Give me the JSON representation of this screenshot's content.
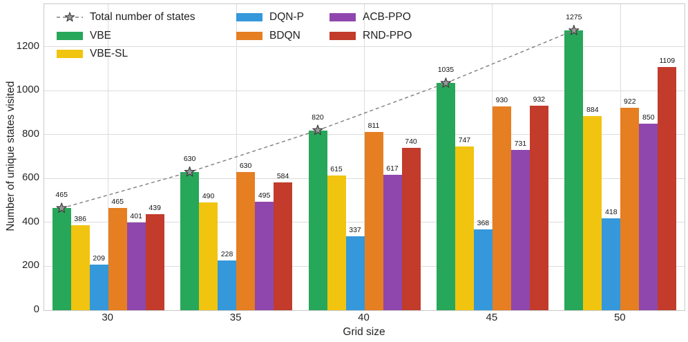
{
  "figure": {
    "xlabel": "Grid size",
    "ylabel": "Number of unique states visited"
  },
  "chart_data": {
    "type": "bar",
    "categories": [
      "30",
      "35",
      "40",
      "45",
      "50"
    ],
    "series": [
      {
        "name": "VBE",
        "color": "#27a75a",
        "values": [
          465,
          630,
          820,
          1035,
          1275
        ]
      },
      {
        "name": "VBE-SL",
        "color": "#f1c40f",
        "values": [
          386,
          490,
          615,
          747,
          884
        ]
      },
      {
        "name": "DQN-P",
        "color": "#3498db",
        "values": [
          209,
          228,
          337,
          368,
          418
        ]
      },
      {
        "name": "BDQN",
        "color": "#e67e22",
        "values": [
          465,
          630,
          811,
          930,
          922
        ]
      },
      {
        "name": "ACB-PPO",
        "color": "#8f47ad",
        "values": [
          401,
          495,
          617,
          731,
          850
        ]
      },
      {
        "name": "RND-PPO",
        "color": "#c23b2b",
        "values": [
          439,
          584,
          740,
          932,
          1109
        ]
      }
    ],
    "line_series": {
      "name": "Total number of states",
      "values": [
        465,
        630,
        820,
        1035,
        1275
      ],
      "style": "dashed",
      "marker": "star",
      "line_color": "#7d7d7d",
      "marker_fill": "#9a9a9a",
      "marker_edge": "#3c3c3c"
    },
    "bar_labels": true,
    "title": "",
    "xlabel": "Grid size",
    "ylabel": "Number of unique states visited",
    "ylim": [
      0,
      1395
    ],
    "yticks": [
      0,
      200,
      400,
      600,
      800,
      1000,
      1200
    ],
    "grid": "horizontal and vertical category gridlines, light gray",
    "legend_position": "upper-left inside plot, 3 columns, no frame"
  },
  "legend": {
    "columns": [
      [
        {
          "label": "Total number of states",
          "marker": "dashed-star",
          "color": "#7d7d7d"
        },
        {
          "label": "VBE",
          "marker": "patch",
          "color": "#27a75a"
        },
        {
          "label": "VBE-SL",
          "marker": "patch",
          "color": "#f1c40f"
        }
      ],
      [
        {
          "label": "DQN-P",
          "marker": "patch",
          "color": "#3498db"
        },
        {
          "label": "BDQN",
          "marker": "patch",
          "color": "#e67e22"
        }
      ],
      [
        {
          "label": "ACB-PPO",
          "marker": "patch",
          "color": "#8f47ad"
        },
        {
          "label": "RND-PPO",
          "marker": "patch",
          "color": "#c23b2b"
        }
      ]
    ]
  }
}
